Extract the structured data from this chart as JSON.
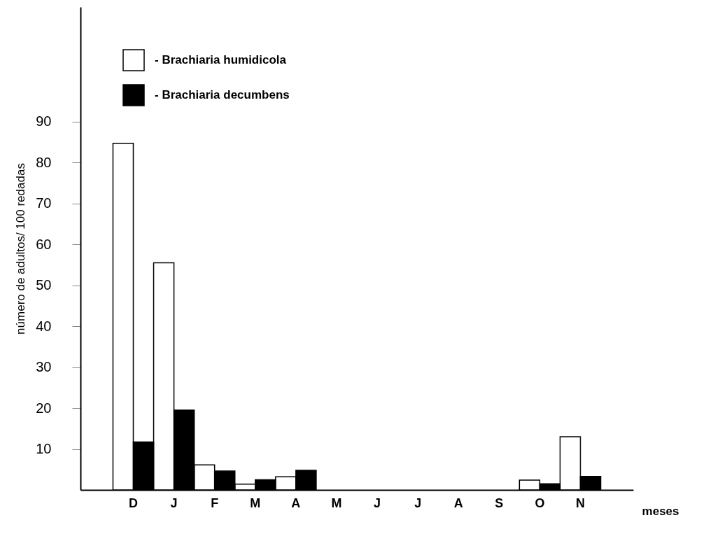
{
  "chart_data": {
    "type": "bar",
    "categories": [
      "D",
      "J",
      "F",
      "M",
      "A",
      "M",
      "J",
      "J",
      "A",
      "S",
      "O",
      "N"
    ],
    "series": [
      {
        "name": "- Brachiaria humidicola",
        "color": "#ffffff",
        "values": [
          84.7,
          55.5,
          6.1,
          1.4,
          3.2,
          null,
          null,
          null,
          null,
          null,
          2.4,
          13.0
        ]
      },
      {
        "name": "- Brachiaria decumbens",
        "color": "#000000",
        "values": [
          11.7,
          19.5,
          4.6,
          2.5,
          4.8,
          null,
          null,
          null,
          null,
          null,
          1.5,
          3.3
        ]
      }
    ],
    "xlabel": "meses",
    "ylabel": "número de adultos/ 100 redadas",
    "ylim": [
      0,
      118
    ],
    "yticks": [
      10,
      20,
      30,
      40,
      50,
      60,
      70,
      80,
      90
    ],
    "grid": false,
    "legend": "top left"
  }
}
